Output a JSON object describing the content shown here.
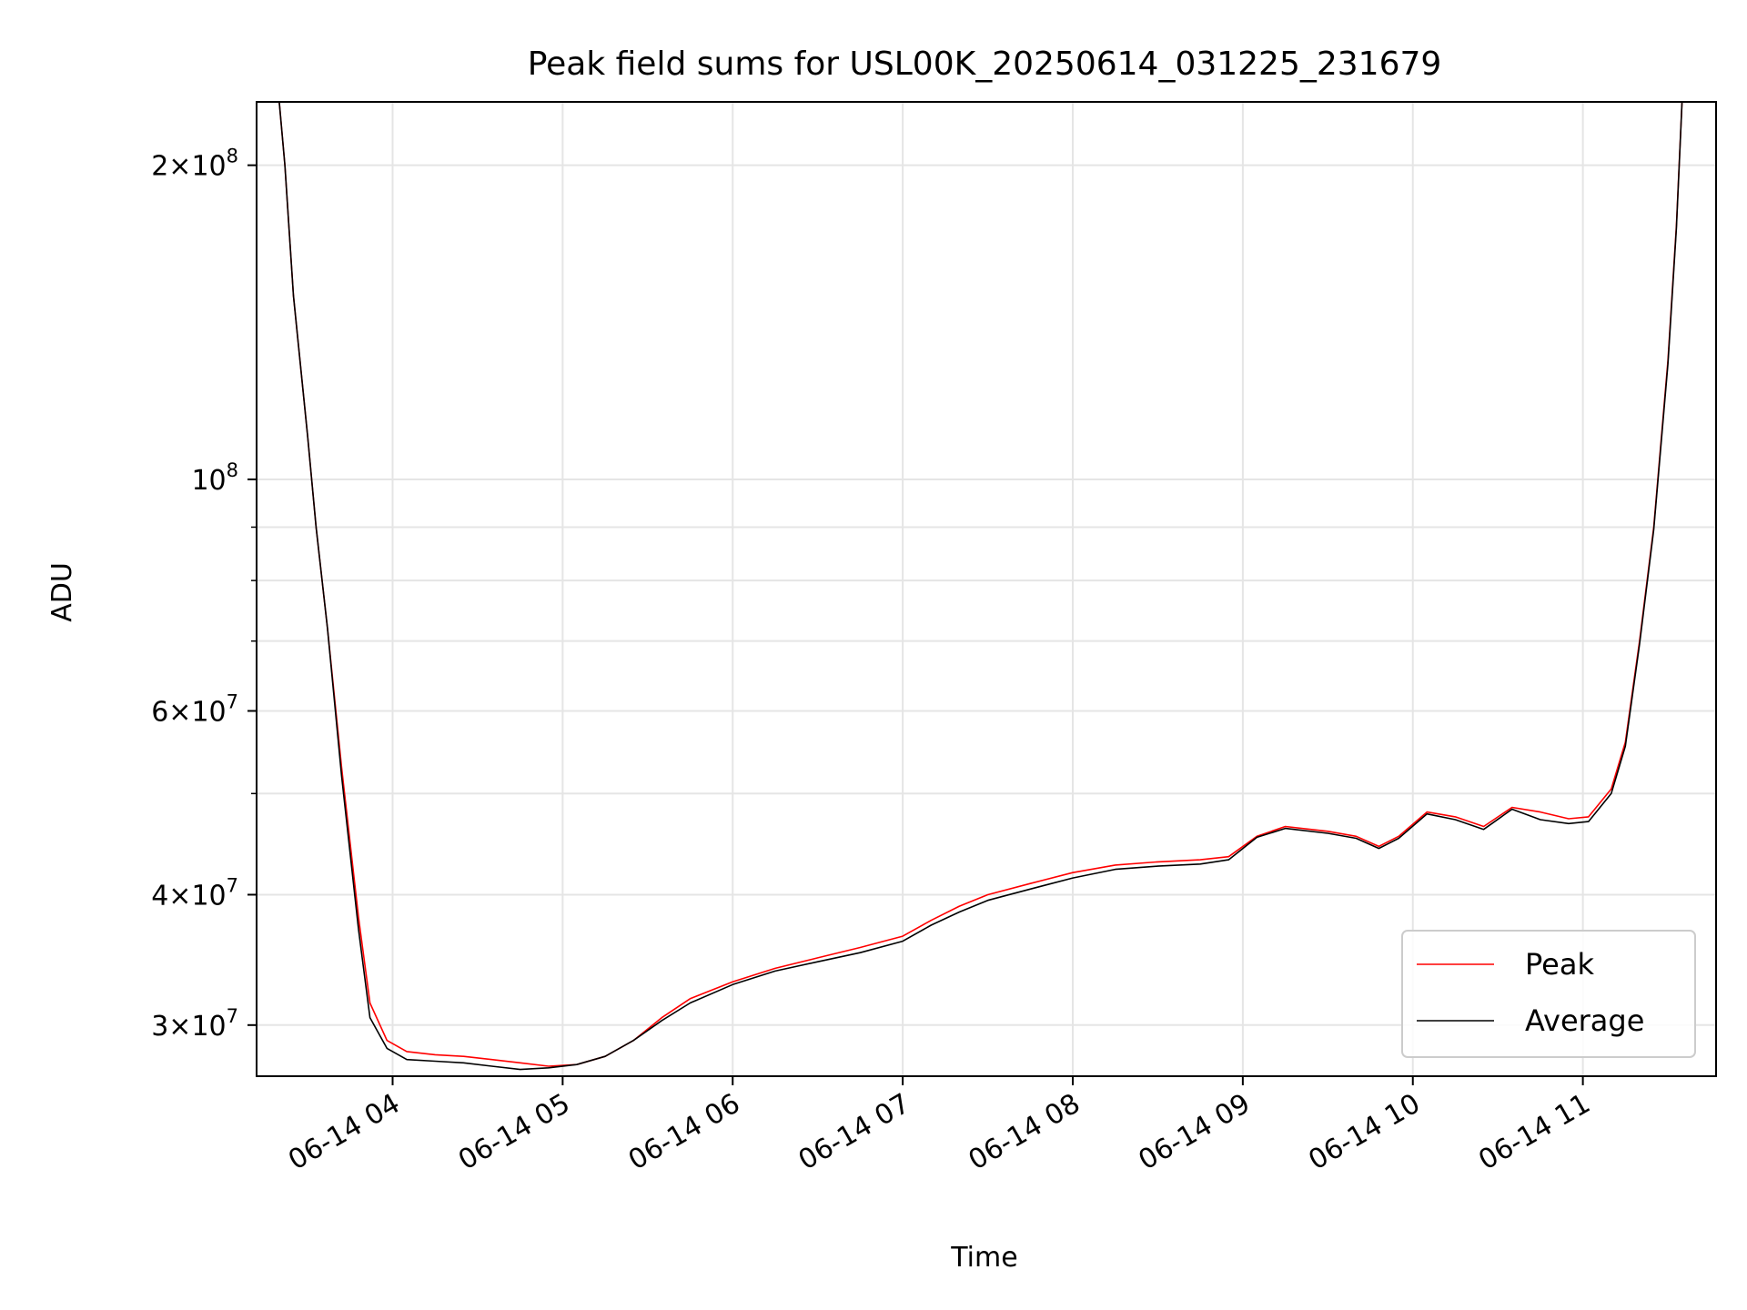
{
  "chart_data": {
    "type": "line",
    "title": "Peak field sums for USL00K_20250614_031225_231679",
    "xlabel": "Time",
    "ylabel": "ADU",
    "y_scale": "log",
    "ylim": [
      26800000,
      230000000
    ],
    "xlim": [
      "2025-06-14T03:12",
      "2025-06-14T11:47"
    ],
    "x_ticks": [
      {
        "t": "2025-06-14T04:00",
        "label": "06-14 04"
      },
      {
        "t": "2025-06-14T05:00",
        "label": "06-14 05"
      },
      {
        "t": "2025-06-14T06:00",
        "label": "06-14 06"
      },
      {
        "t": "2025-06-14T07:00",
        "label": "06-14 07"
      },
      {
        "t": "2025-06-14T08:00",
        "label": "06-14 08"
      },
      {
        "t": "2025-06-14T09:00",
        "label": "06-14 09"
      },
      {
        "t": "2025-06-14T10:00",
        "label": "06-14 10"
      },
      {
        "t": "2025-06-14T11:00",
        "label": "06-14 11"
      }
    ],
    "y_ticks": [
      {
        "value": 30000000,
        "mant": "3",
        "exp": "7"
      },
      {
        "value": 40000000,
        "mant": "4",
        "exp": "7"
      },
      {
        "value": 60000000,
        "mant": "6",
        "exp": "7"
      },
      {
        "value": 100000000,
        "mant": "",
        "exp": "8"
      },
      {
        "value": 200000000,
        "mant": "2",
        "exp": "8"
      }
    ],
    "y_minor_ticks": [
      50000000,
      70000000,
      80000000,
      90000000
    ],
    "grid": true,
    "legend_position": "lower-right",
    "series": [
      {
        "name": "Peak",
        "color": "#ff0000",
        "x": [
          "2025-06-14T03:12",
          "2025-06-14T03:20",
          "2025-06-14T03:22",
          "2025-06-14T03:25",
          "2025-06-14T03:30",
          "2025-06-14T03:33",
          "2025-06-14T03:37",
          "2025-06-14T03:42",
          "2025-06-14T03:48",
          "2025-06-14T03:52",
          "2025-06-14T03:58",
          "2025-06-14T04:05",
          "2025-06-14T04:15",
          "2025-06-14T04:25",
          "2025-06-14T04:35",
          "2025-06-14T04:45",
          "2025-06-14T04:55",
          "2025-06-14T05:05",
          "2025-06-14T05:15",
          "2025-06-14T05:25",
          "2025-06-14T05:35",
          "2025-06-14T05:45",
          "2025-06-14T06:00",
          "2025-06-14T06:15",
          "2025-06-14T06:30",
          "2025-06-14T06:45",
          "2025-06-14T07:00",
          "2025-06-14T07:10",
          "2025-06-14T07:20",
          "2025-06-14T07:30",
          "2025-06-14T07:45",
          "2025-06-14T08:00",
          "2025-06-14T08:15",
          "2025-06-14T08:30",
          "2025-06-14T08:45",
          "2025-06-14T08:55",
          "2025-06-14T09:05",
          "2025-06-14T09:15",
          "2025-06-14T09:30",
          "2025-06-14T09:40",
          "2025-06-14T09:48",
          "2025-06-14T09:55",
          "2025-06-14T10:05",
          "2025-06-14T10:15",
          "2025-06-14T10:25",
          "2025-06-14T10:35",
          "2025-06-14T10:45",
          "2025-06-14T10:55",
          "2025-06-14T11:02",
          "2025-06-14T11:10",
          "2025-06-14T11:15",
          "2025-06-14T11:20",
          "2025-06-14T11:25",
          "2025-06-14T11:30",
          "2025-06-14T11:33",
          "2025-06-14T11:35",
          "2025-06-14T11:47"
        ],
        "values": [
          230000000,
          230000000,
          200000000,
          150000000,
          110000000,
          90000000,
          72000000,
          53000000,
          38000000,
          31500000,
          29000000,
          28300000,
          28100000,
          28000000,
          27800000,
          27600000,
          27400000,
          27500000,
          28000000,
          29000000,
          30500000,
          31800000,
          33000000,
          34000000,
          34800000,
          35600000,
          36500000,
          37800000,
          39000000,
          40000000,
          41000000,
          42000000,
          42700000,
          43000000,
          43200000,
          43500000,
          45500000,
          46500000,
          46000000,
          45500000,
          44500000,
          45500000,
          48000000,
          47500000,
          46500000,
          48500000,
          48000000,
          47300000,
          47500000,
          50500000,
          56000000,
          70000000,
          90000000,
          130000000,
          175000000,
          230000000,
          230000000
        ]
      },
      {
        "name": "Average",
        "color": "#000000",
        "x": [
          "2025-06-14T03:12",
          "2025-06-14T03:20",
          "2025-06-14T03:22",
          "2025-06-14T03:25",
          "2025-06-14T03:30",
          "2025-06-14T03:33",
          "2025-06-14T03:37",
          "2025-06-14T03:42",
          "2025-06-14T03:48",
          "2025-06-14T03:52",
          "2025-06-14T03:58",
          "2025-06-14T04:05",
          "2025-06-14T04:15",
          "2025-06-14T04:25",
          "2025-06-14T04:35",
          "2025-06-14T04:45",
          "2025-06-14T04:55",
          "2025-06-14T05:05",
          "2025-06-14T05:15",
          "2025-06-14T05:25",
          "2025-06-14T05:35",
          "2025-06-14T05:45",
          "2025-06-14T06:00",
          "2025-06-14T06:15",
          "2025-06-14T06:30",
          "2025-06-14T06:45",
          "2025-06-14T07:00",
          "2025-06-14T07:10",
          "2025-06-14T07:20",
          "2025-06-14T07:30",
          "2025-06-14T07:45",
          "2025-06-14T08:00",
          "2025-06-14T08:15",
          "2025-06-14T08:30",
          "2025-06-14T08:45",
          "2025-06-14T08:55",
          "2025-06-14T09:05",
          "2025-06-14T09:15",
          "2025-06-14T09:30",
          "2025-06-14T09:40",
          "2025-06-14T09:48",
          "2025-06-14T09:55",
          "2025-06-14T10:05",
          "2025-06-14T10:15",
          "2025-06-14T10:25",
          "2025-06-14T10:35",
          "2025-06-14T10:45",
          "2025-06-14T10:55",
          "2025-06-14T11:02",
          "2025-06-14T11:10",
          "2025-06-14T11:15",
          "2025-06-14T11:20",
          "2025-06-14T11:25",
          "2025-06-14T11:30",
          "2025-06-14T11:33",
          "2025-06-14T11:35",
          "2025-06-14T11:47"
        ],
        "values": [
          230000000,
          230000000,
          200000000,
          150000000,
          110000000,
          90000000,
          72000000,
          52000000,
          37000000,
          30500000,
          28500000,
          27800000,
          27700000,
          27600000,
          27400000,
          27200000,
          27300000,
          27500000,
          28000000,
          29000000,
          30300000,
          31500000,
          32800000,
          33800000,
          34500000,
          35200000,
          36100000,
          37400000,
          38500000,
          39500000,
          40500000,
          41500000,
          42300000,
          42600000,
          42800000,
          43200000,
          45400000,
          46300000,
          45800000,
          45300000,
          44300000,
          45300000,
          47800000,
          47200000,
          46200000,
          48300000,
          47200000,
          46800000,
          47000000,
          50000000,
          55500000,
          69500000,
          89500000,
          129000000,
          174000000,
          230000000,
          230000000
        ]
      }
    ]
  }
}
